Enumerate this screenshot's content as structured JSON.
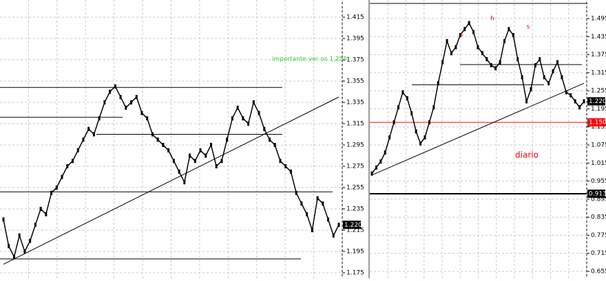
{
  "chart_data": [
    {
      "type": "line",
      "color": "#000000",
      "values": [
        1.225,
        1.2,
        1.19,
        1.21,
        1.195,
        1.205,
        1.22,
        1.235,
        1.23,
        1.25,
        1.255,
        1.265,
        1.275,
        1.28,
        1.29,
        1.3,
        1.31,
        1.305,
        1.32,
        1.335,
        1.345,
        1.35,
        1.34,
        1.33,
        1.335,
        1.34,
        1.325,
        1.32,
        1.305,
        1.3,
        1.295,
        1.29,
        1.28,
        1.27,
        1.26,
        1.285,
        1.28,
        1.29,
        1.285,
        1.295,
        1.275,
        1.28,
        1.3,
        1.32,
        1.33,
        1.32,
        1.315,
        1.335,
        1.325,
        1.31,
        1.3,
        1.295,
        1.28,
        1.275,
        1.27,
        1.25,
        1.24,
        1.23,
        1.215,
        1.245,
        1.24,
        1.225,
        1.21,
        1.22
      ],
      "ylim": [
        1.175,
        1.415
      ],
      "yticks": [
        1.415,
        1.395,
        1.375,
        1.355,
        1.335,
        1.315,
        1.295,
        1.275,
        1.255,
        1.235,
        1.215,
        1.195,
        1.175
      ],
      "grid": true,
      "levels": [
        1.349,
        1.321,
        1.305,
        1.251,
        1.188
      ],
      "level_colors": [
        "#000000",
        "#000000",
        "#000000",
        "#000000",
        "#000000"
      ],
      "trendline": [
        1.183,
        1.34
      ],
      "price_labels": [
        {
          "value": 1.22,
          "label": "1.220",
          "color": "#000000"
        }
      ],
      "annotations": [
        "importante ver os 1,255"
      ],
      "annotation_color": "#33cc33"
    },
    {
      "type": "line",
      "color": "#000000",
      "values": [
        0.98,
        1.0,
        1.02,
        1.05,
        1.1,
        1.15,
        1.2,
        1.25,
        1.23,
        1.18,
        1.12,
        1.08,
        1.1,
        1.15,
        1.2,
        1.28,
        1.35,
        1.42,
        1.38,
        1.4,
        1.44,
        1.46,
        1.48,
        1.45,
        1.4,
        1.38,
        1.36,
        1.34,
        1.33,
        1.35,
        1.42,
        1.46,
        1.44,
        1.36,
        1.3,
        1.22,
        1.26,
        1.34,
        1.36,
        1.3,
        1.28,
        1.32,
        1.35,
        1.3,
        1.25,
        1.24,
        1.22,
        1.2,
        1.22
      ],
      "ylim": [
        0.655,
        1.495
      ],
      "yticks": [
        1.495,
        1.435,
        1.375,
        1.315,
        1.255,
        1.195,
        1.135,
        1.075,
        1.015,
        0.955,
        0.895,
        0.835,
        0.775,
        0.715,
        0.655
      ],
      "grid": true,
      "levels": [
        1.342,
        1.275,
        1.15,
        0.913
      ],
      "level_colors": [
        "#000000",
        "#000000",
        "#ff0000",
        "#000000"
      ],
      "trendline": [
        0.975,
        1.28
      ],
      "price_labels": [
        {
          "value": 1.22,
          "label": "1.220",
          "color": "#000000"
        },
        {
          "value": 1.15,
          "label": "1.150",
          "color": "#ff0000"
        },
        {
          "value": 0.913,
          "label": "0.913",
          "color": "#000000"
        }
      ],
      "annotations": [
        "diario",
        "h",
        "s",
        "s"
      ],
      "annotation_color": "#ff0000"
    }
  ]
}
